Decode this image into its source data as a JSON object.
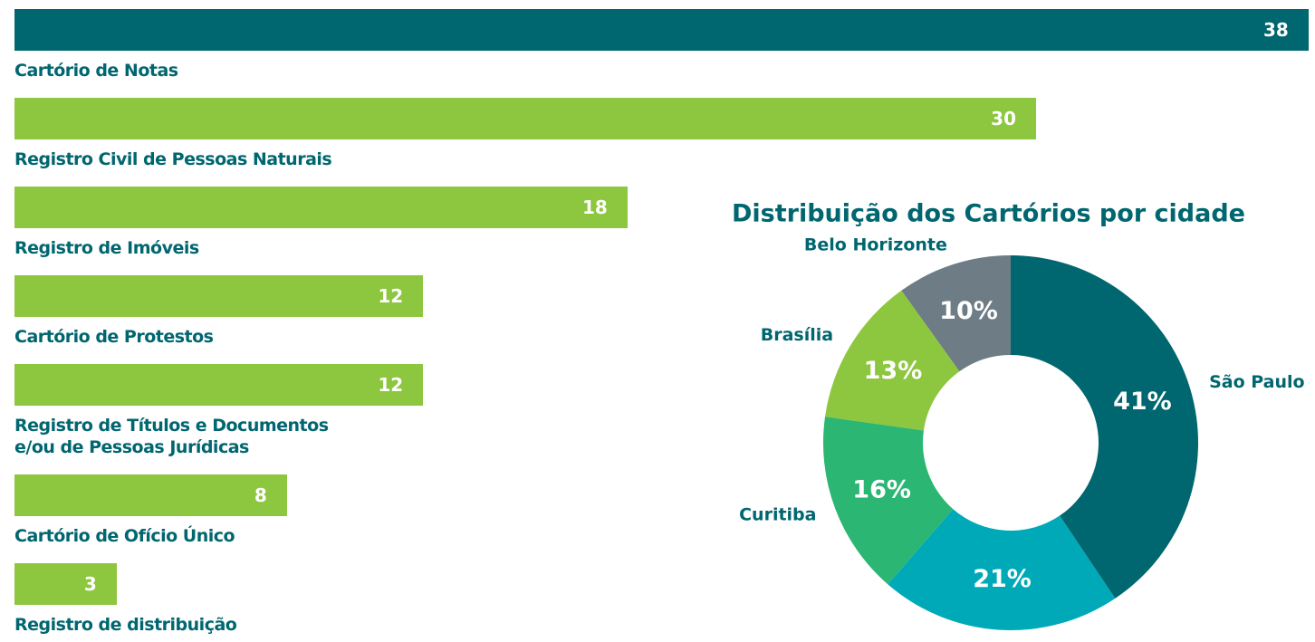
{
  "chart_data": [
    {
      "type": "hbar",
      "categories": [
        "Cartório de Notas",
        "Registro Civil de Pessoas Naturais",
        "Registro de Imóveis",
        "Cartório de Protestos",
        "Registro de Títulos e Documentos\ne/ou de Pessoas Jurídicas",
        "Cartório de Ofício Único",
        "Registro de distribuição"
      ],
      "values": [
        38,
        30,
        18,
        12,
        12,
        8,
        3
      ],
      "colors": [
        "#00666f",
        "#8dc63f",
        "#8dc63f",
        "#8dc63f",
        "#8dc63f",
        "#8dc63f",
        "#8dc63f"
      ]
    },
    {
      "type": "donut",
      "title": "Distribuição dos Cartórios por cidade",
      "categories": [
        "São Paulo",
        null,
        "Curitiba",
        "Brasília",
        "Belo Horizonte"
      ],
      "values": [
        41,
        21,
        16,
        13,
        10
      ],
      "value_labels": [
        "41%",
        "21%",
        "16%",
        "13%",
        "10%"
      ],
      "colors": [
        "#00666f",
        "#00a9b8",
        "#2bb673",
        "#8dc63f",
        "#6d7c85"
      ]
    }
  ]
}
